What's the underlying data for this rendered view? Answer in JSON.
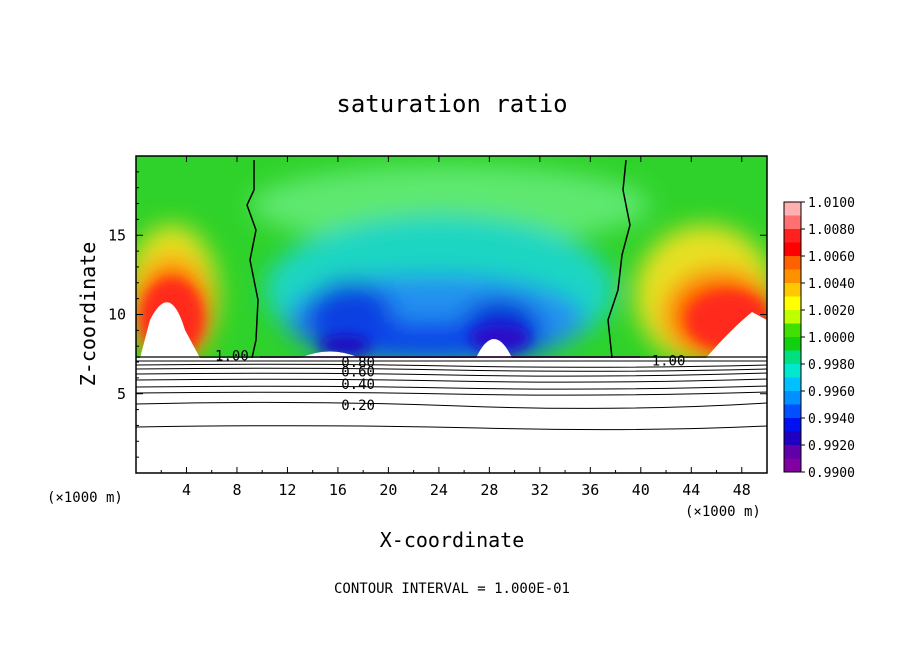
{
  "chart_data": {
    "type": "heatmap",
    "title": "saturation ratio",
    "xlabel": "X-coordinate",
    "ylabel": "Z-coordinate",
    "x_unit": "(×1000 m)",
    "x_unit_right": "(×1000 m)",
    "xlim": [
      0,
      50
    ],
    "ylim": [
      0,
      20
    ],
    "x_ticks": [
      4,
      8,
      12,
      16,
      20,
      24,
      28,
      32,
      36,
      40,
      44,
      48
    ],
    "y_ticks": [
      5,
      10,
      15
    ],
    "colorbar": {
      "min": 0.99,
      "max": 1.01,
      "labels": [
        "1.0100",
        "1.0080",
        "1.0060",
        "1.0040",
        "1.0020",
        "1.0000",
        "0.9980",
        "0.9960",
        "0.9940",
        "0.9920",
        "0.9900"
      ]
    },
    "contour_labels": [
      {
        "text": "1.00",
        "x": 7.6,
        "z": 7.4
      },
      {
        "text": "1.00",
        "x": 42.2,
        "z": 7.1
      },
      {
        "text": "0.80",
        "x": 17.6,
        "z": 7.0
      },
      {
        "text": "0.60",
        "x": 17.6,
        "z": 6.4
      },
      {
        "text": "0.40",
        "x": 17.6,
        "z": 5.6
      },
      {
        "text": "0.20",
        "x": 17.6,
        "z": 4.3
      }
    ],
    "footer": "CONTOUR INTERVAL = 1.000E-01"
  }
}
